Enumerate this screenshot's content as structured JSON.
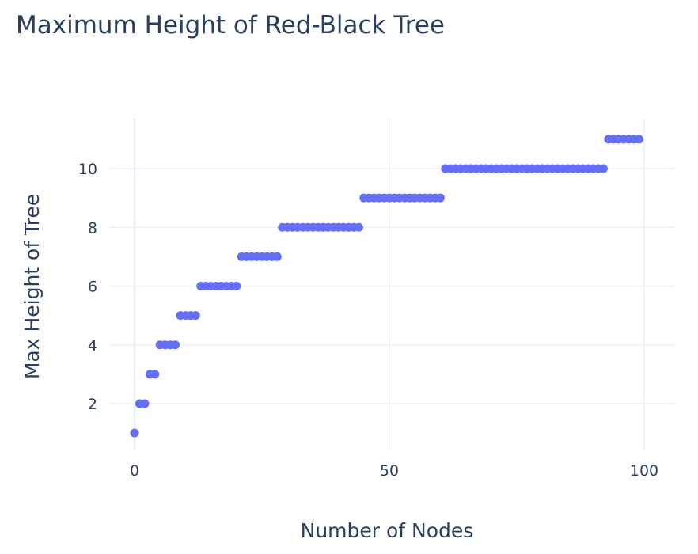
{
  "chart_data": {
    "type": "scatter",
    "title": "Maximum Height of Red-Black Tree",
    "xlabel": "Number of Nodes",
    "ylabel": "Max Height of Tree",
    "xlim": [
      -5,
      106
    ],
    "ylim": [
      0.4,
      11.6
    ],
    "x_ticks": [
      0,
      50,
      100
    ],
    "y_ticks": [
      2,
      4,
      6,
      8,
      10
    ],
    "grid": true,
    "marker_color": "#636efa",
    "steps": [
      {
        "y": 1,
        "x_from": 0,
        "x_to": 0
      },
      {
        "y": 2,
        "x_from": 1,
        "x_to": 2
      },
      {
        "y": 3,
        "x_from": 3,
        "x_to": 4
      },
      {
        "y": 4,
        "x_from": 5,
        "x_to": 8
      },
      {
        "y": 5,
        "x_from": 9,
        "x_to": 12
      },
      {
        "y": 6,
        "x_from": 13,
        "x_to": 20
      },
      {
        "y": 7,
        "x_from": 21,
        "x_to": 28
      },
      {
        "y": 8,
        "x_from": 29,
        "x_to": 44
      },
      {
        "y": 9,
        "x_from": 45,
        "x_to": 60
      },
      {
        "y": 10,
        "x_from": 61,
        "x_to": 92
      },
      {
        "y": 11,
        "x_from": 93,
        "x_to": 99
      }
    ]
  }
}
